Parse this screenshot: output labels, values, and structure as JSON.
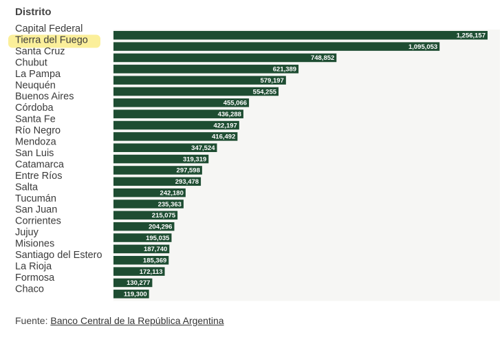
{
  "chart_data": {
    "type": "bar",
    "orientation": "horizontal",
    "column_header": "Distrito",
    "categories": [
      "Capital Federal",
      "Tierra del Fuego",
      "Santa Cruz",
      "Chubut",
      "La Pampa",
      "Neuquén",
      "Buenos Aires",
      "Córdoba",
      "Santa Fe",
      "Río Negro",
      "Mendoza",
      "San Luis",
      "Catamarca",
      "Entre Ríos",
      "Salta",
      "Tucumán",
      "San Juan",
      "Corrientes",
      "Jujuy",
      "Misiones",
      "Santiago del Estero",
      "La Rioja",
      "Formosa",
      "Chaco"
    ],
    "values": [
      1256157,
      1095053,
      748852,
      621389,
      579197,
      554255,
      455066,
      436288,
      422197,
      416492,
      347524,
      319319,
      297598,
      293478,
      242180,
      235363,
      215075,
      204296,
      195035,
      187740,
      185369,
      172113,
      130277,
      119300
    ],
    "value_labels": [
      "1,256,157",
      "1,095,053",
      "748,852",
      "621,389",
      "579,197",
      "554,255",
      "455,066",
      "436,288",
      "422,197",
      "416,492",
      "347,524",
      "319,319",
      "297,598",
      "293,478",
      "242,180",
      "235,363",
      "215,075",
      "204,296",
      "195,035",
      "187,740",
      "185,369",
      "172,113",
      "130,277",
      "119,300"
    ],
    "highlighted_category": "Tierra del Fuego",
    "colors": {
      "bar": "#1e4d32",
      "track": "#f6f6f4",
      "highlight": "#fbef9a",
      "label_text": "#ffffff"
    }
  },
  "footer": {
    "prefix": "Fuente: ",
    "link_text": "Banco Central de la República Argentina"
  }
}
